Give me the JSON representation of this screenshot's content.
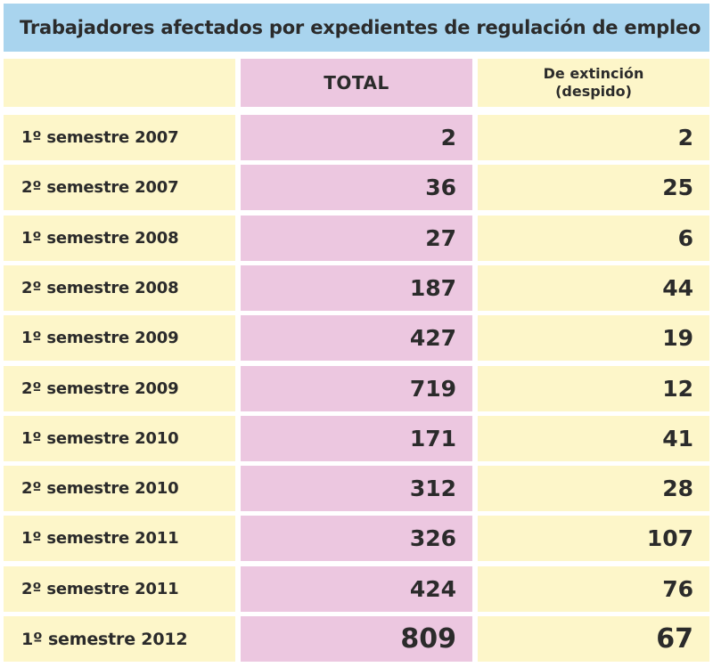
{
  "chart_data": {
    "type": "table",
    "title": "Trabajadores afectados por expedientes de regulación de empleo",
    "columns": [
      "TOTAL",
      "De extinción\n(despido)"
    ],
    "rows": [
      {
        "label": "1º semestre 2007",
        "total": "2",
        "extincion": "2"
      },
      {
        "label": "2º semestre 2007",
        "total": "36",
        "extincion": "25"
      },
      {
        "label": "1º semestre 2008",
        "total": "27",
        "extincion": "6"
      },
      {
        "label": "2º semestre 2008",
        "total": "187",
        "extincion": "44"
      },
      {
        "label": "1º semestre 2009",
        "total": "427",
        "extincion": "19"
      },
      {
        "label": "2º semestre 2009",
        "total": "719",
        "extincion": "12"
      },
      {
        "label": "1º semestre 2010",
        "total": "171",
        "extincion": "41"
      },
      {
        "label": "2º semestre 2010",
        "total": "312",
        "extincion": "28"
      },
      {
        "label": "1º semestre 2011",
        "total": "326",
        "extincion": "107"
      },
      {
        "label": "2º semestre 2011",
        "total": "424",
        "extincion": "76"
      },
      {
        "label": "1º semestre 2012",
        "total": "809",
        "extincion": "67"
      }
    ]
  },
  "colors": {
    "title_bg": "#a9d4ee",
    "label_bg": "#fdf6c9",
    "total_bg": "#ecc7e0",
    "extincion_bg": "#fdf6c9"
  }
}
